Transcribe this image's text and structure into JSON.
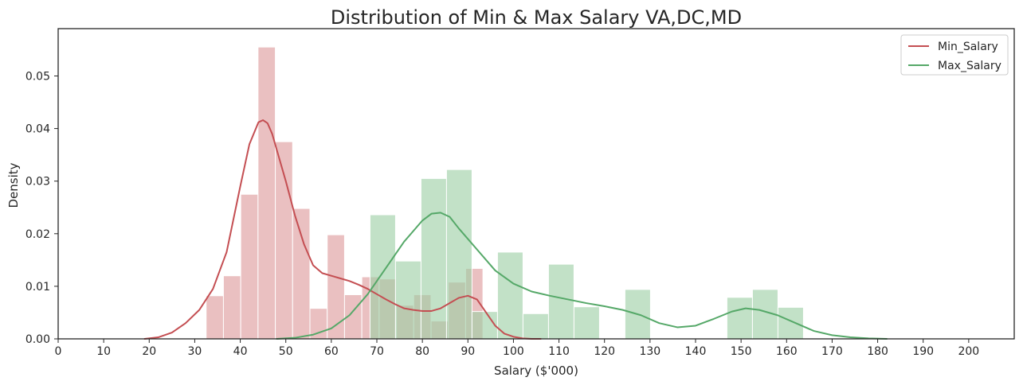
{
  "chart_data": {
    "type": "histogram+kde",
    "title": "Distribution of Min & Max Salary VA,DC,MD",
    "xlabel": "Salary ($'000)",
    "ylabel": "Density",
    "xlim": [
      0,
      210
    ],
    "ylim": [
      0,
      0.059
    ],
    "xticks": [
      0,
      10,
      20,
      30,
      40,
      50,
      60,
      70,
      80,
      90,
      100,
      110,
      120,
      130,
      140,
      150,
      160,
      170,
      180,
      190,
      200
    ],
    "yticks": [
      0.0,
      0.01,
      0.02,
      0.03,
      0.04,
      0.05
    ],
    "ytick_labels": [
      "0.00",
      "0.01",
      "0.02",
      "0.03",
      "0.04",
      "0.05"
    ],
    "grid": false,
    "legend_position": "top-right",
    "series": [
      {
        "name": "Min_Salary",
        "color": "#c44e52",
        "hist_color": "#dd9a9b",
        "bins": [
          {
            "x0": 32.5,
            "x1": 36.3,
            "density": 0.0082
          },
          {
            "x0": 36.3,
            "x1": 40.1,
            "density": 0.012
          },
          {
            "x0": 40.1,
            "x1": 43.9,
            "density": 0.0275
          },
          {
            "x0": 43.9,
            "x1": 47.7,
            "density": 0.0555
          },
          {
            "x0": 47.7,
            "x1": 51.5,
            "density": 0.0375
          },
          {
            "x0": 51.5,
            "x1": 55.3,
            "density": 0.0248
          },
          {
            "x0": 55.3,
            "x1": 59.1,
            "density": 0.0058
          },
          {
            "x0": 59.1,
            "x1": 62.9,
            "density": 0.0198
          },
          {
            "x0": 62.9,
            "x1": 66.7,
            "density": 0.0084
          },
          {
            "x0": 66.7,
            "x1": 70.5,
            "density": 0.0118
          },
          {
            "x0": 70.5,
            "x1": 74.3,
            "density": 0.0114
          },
          {
            "x0": 74.3,
            "x1": 78.1,
            "density": 0.0064
          },
          {
            "x0": 78.1,
            "x1": 81.9,
            "density": 0.0084
          },
          {
            "x0": 81.9,
            "x1": 85.7,
            "density": 0.0034
          },
          {
            "x0": 85.7,
            "x1": 89.5,
            "density": 0.0108
          },
          {
            "x0": 89.5,
            "x1": 93.3,
            "density": 0.0134
          }
        ],
        "kde": {
          "x": [
            19,
            22,
            25,
            28,
            31,
            34,
            37,
            40,
            42,
            44,
            45,
            46,
            47,
            48,
            50,
            52,
            54,
            56,
            58,
            60,
            62,
            64,
            66,
            68,
            70,
            72,
            74,
            76,
            78,
            80,
            82,
            84,
            86,
            88,
            90,
            92,
            94,
            96,
            98,
            100,
            102,
            104,
            106
          ],
          "y": [
            0.0,
            0.0003,
            0.0012,
            0.003,
            0.0055,
            0.0095,
            0.0165,
            0.029,
            0.037,
            0.0412,
            0.0416,
            0.041,
            0.039,
            0.036,
            0.03,
            0.0235,
            0.018,
            0.014,
            0.0125,
            0.012,
            0.0115,
            0.011,
            0.0103,
            0.0095,
            0.0085,
            0.0075,
            0.0066,
            0.0058,
            0.0055,
            0.0053,
            0.0053,
            0.0058,
            0.0068,
            0.0078,
            0.0082,
            0.0075,
            0.005,
            0.0025,
            0.001,
            0.0004,
            0.0001,
            0.0,
            0.0
          ]
        }
      },
      {
        "name": "Max_Salary",
        "color": "#55a868",
        "hist_color": "#9ccfa5",
        "bins": [
          {
            "x0": 68.5,
            "x1": 74.1,
            "density": 0.0236
          },
          {
            "x0": 74.1,
            "x1": 79.7,
            "density": 0.0148
          },
          {
            "x0": 79.7,
            "x1": 85.3,
            "density": 0.0305
          },
          {
            "x0": 85.3,
            "x1": 90.9,
            "density": 0.0322
          },
          {
            "x0": 90.9,
            "x1": 96.5,
            "density": 0.0052
          },
          {
            "x0": 96.5,
            "x1": 102.1,
            "density": 0.0165
          },
          {
            "x0": 102.1,
            "x1": 107.7,
            "density": 0.0048
          },
          {
            "x0": 107.7,
            "x1": 113.3,
            "density": 0.0142
          },
          {
            "x0": 113.3,
            "x1": 118.9,
            "density": 0.0061
          },
          {
            "x0": 124.5,
            "x1": 130.1,
            "density": 0.0094
          },
          {
            "x0": 146.9,
            "x1": 152.5,
            "density": 0.0079
          },
          {
            "x0": 152.5,
            "x1": 158.1,
            "density": 0.0094
          },
          {
            "x0": 158.1,
            "x1": 163.7,
            "density": 0.006
          }
        ],
        "kde": {
          "x": [
            48,
            52,
            56,
            60,
            64,
            68,
            72,
            76,
            80,
            82,
            84,
            86,
            88,
            92,
            96,
            100,
            104,
            108,
            112,
            116,
            120,
            124,
            128,
            132,
            136,
            140,
            144,
            148,
            151,
            154,
            158,
            162,
            166,
            170,
            174,
            178,
            182
          ],
          "y": [
            0.0,
            0.0002,
            0.0008,
            0.002,
            0.0045,
            0.0085,
            0.0135,
            0.0185,
            0.0225,
            0.0238,
            0.024,
            0.0232,
            0.021,
            0.017,
            0.013,
            0.0105,
            0.009,
            0.0082,
            0.0075,
            0.0068,
            0.0062,
            0.0055,
            0.0045,
            0.003,
            0.0022,
            0.0025,
            0.0038,
            0.0052,
            0.0058,
            0.0055,
            0.0045,
            0.003,
            0.0015,
            0.0007,
            0.0003,
            0.0001,
            0.0
          ]
        }
      }
    ]
  }
}
